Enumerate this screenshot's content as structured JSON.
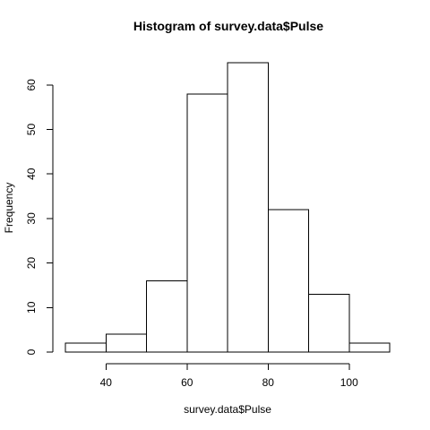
{
  "chart_data": {
    "type": "bar",
    "title": "Histogram of survey.data$Pulse",
    "xlabel": "survey.data$Pulse",
    "ylabel": "Frequency",
    "bins": [
      {
        "start": 30,
        "end": 40,
        "count": 2
      },
      {
        "start": 40,
        "end": 50,
        "count": 4
      },
      {
        "start": 50,
        "end": 60,
        "count": 16
      },
      {
        "start": 60,
        "end": 70,
        "count": 58
      },
      {
        "start": 70,
        "end": 80,
        "count": 65
      },
      {
        "start": 80,
        "end": 90,
        "count": 32
      },
      {
        "start": 90,
        "end": 100,
        "count": 13
      },
      {
        "start": 100,
        "end": 110,
        "count": 2
      }
    ],
    "xlim": [
      30,
      110
    ],
    "ylim": [
      0,
      65
    ],
    "x_ticks": [
      40,
      60,
      80,
      100
    ],
    "y_ticks": [
      0,
      10,
      20,
      30,
      40,
      50,
      60
    ],
    "grid": false,
    "colors": {
      "bar_fill": "#ffffff",
      "bar_stroke": "#000000",
      "axis": "#000000",
      "text": "#000000",
      "background": "#ffffff"
    }
  }
}
